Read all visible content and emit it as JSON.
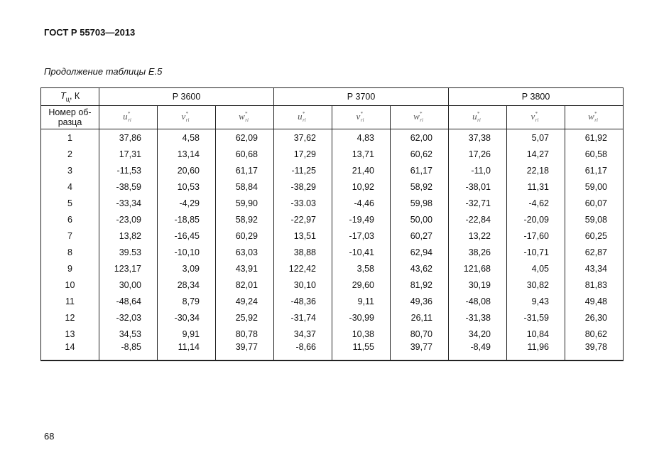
{
  "header": {
    "title": "ГОСТ Р 55703—2013"
  },
  "caption": "Продолжение таблицы Е.5",
  "table": {
    "corner_top": {
      "symbol": "T",
      "subscript": "ц",
      "unit": ", К"
    },
    "corner_bottom": [
      "Номер об-",
      "разца"
    ],
    "groups": [
      {
        "name": "Р 3600",
        "columns": [
          {
            "symbol": "u",
            "sup": "*",
            "sub": "ri"
          },
          {
            "symbol": "v",
            "sup": "*",
            "sub": "ri"
          },
          {
            "symbol": "w",
            "sup": "*",
            "sub": "ri"
          }
        ]
      },
      {
        "name": "Р 3700",
        "columns": [
          {
            "symbol": "u",
            "sup": "*",
            "sub": "ri"
          },
          {
            "symbol": "v",
            "sup": "*",
            "sub": "ri"
          },
          {
            "symbol": "w",
            "sup": "*",
            "sub": "ri"
          }
        ]
      },
      {
        "name": "Р 3800",
        "columns": [
          {
            "symbol": "u",
            "sup": "*",
            "sub": "ri"
          },
          {
            "symbol": "v",
            "sup": "*",
            "sub": "ri"
          },
          {
            "symbol": "w",
            "sup": "*",
            "sub": "ri"
          }
        ]
      }
    ],
    "rows": [
      {
        "sample": "1",
        "values": [
          "37,86",
          "4,58",
          "62,09",
          "37,62",
          "4,83",
          "62,00",
          "37,38",
          "5,07",
          "61,92"
        ]
      },
      {
        "sample": "2",
        "values": [
          "17,31",
          "13,14",
          "60,68",
          "17,29",
          "13,71",
          "60,62",
          "17,26",
          "14,27",
          "60,58"
        ]
      },
      {
        "sample": "3",
        "values": [
          "-11,53",
          "20,60",
          "61,17",
          "-11,25",
          "21,40",
          "61,17",
          "-11,0",
          "22,18",
          "61,17"
        ]
      },
      {
        "sample": "4",
        "values": [
          "-38,59",
          "10,53",
          "58,84",
          "-38,29",
          "10,92",
          "58,92",
          "-38,01",
          "11,31",
          "59,00"
        ]
      },
      {
        "sample": "5",
        "values": [
          "-33,34",
          "-4,29",
          "59,90",
          "-33.03",
          "-4,46",
          "59,98",
          "-32,71",
          "-4,62",
          "60,07"
        ]
      },
      {
        "sample": "6",
        "values": [
          "-23,09",
          "-18,85",
          "58,92",
          "-22,97",
          "-19,49",
          "50,00",
          "-22,84",
          "-20,09",
          "59,08"
        ]
      },
      {
        "sample": "7",
        "values": [
          "13,82",
          "-16,45",
          "60,29",
          "13,51",
          "-17,03",
          "60,27",
          "13,22",
          "-17,60",
          "60,25"
        ]
      },
      {
        "sample": "8",
        "values": [
          "39.53",
          "-10,10",
          "63,03",
          "38,88",
          "-10,41",
          "62,94",
          "38,26",
          "-10,71",
          "62,87"
        ]
      },
      {
        "sample": "9",
        "values": [
          "123,17",
          "3,09",
          "43,91",
          "122,42",
          "3,58",
          "43,62",
          "121,68",
          "4,05",
          "43,34"
        ]
      },
      {
        "sample": "10",
        "values": [
          "30,00",
          "28,34",
          "82,01",
          "30,10",
          "29,60",
          "81,92",
          "30,19",
          "30,82",
          "81,83"
        ]
      },
      {
        "sample": "11",
        "values": [
          "-48,64",
          "8,79",
          "49,24",
          "-48,36",
          "9,11",
          "49,36",
          "-48,08",
          "9,43",
          "49,48"
        ]
      },
      {
        "sample": "12",
        "values": [
          "-32,03",
          "-30,34",
          "25,92",
          "-31,74",
          "-30,99",
          "26,11",
          "-31,38",
          "-31,59",
          "26,30"
        ]
      },
      {
        "sample": "13",
        "values": [
          "34,53",
          "9,91",
          "80,78",
          "34,37",
          "10,38",
          "80,70",
          "34,20",
          "10,84",
          "80,62"
        ]
      },
      {
        "sample": "14",
        "values": [
          "-8,85",
          "11,14",
          "39,77",
          "-8,66",
          "11,55",
          "39,77",
          "-8,49",
          "11,96",
          "39,78"
        ]
      }
    ]
  },
  "page_number": "68"
}
